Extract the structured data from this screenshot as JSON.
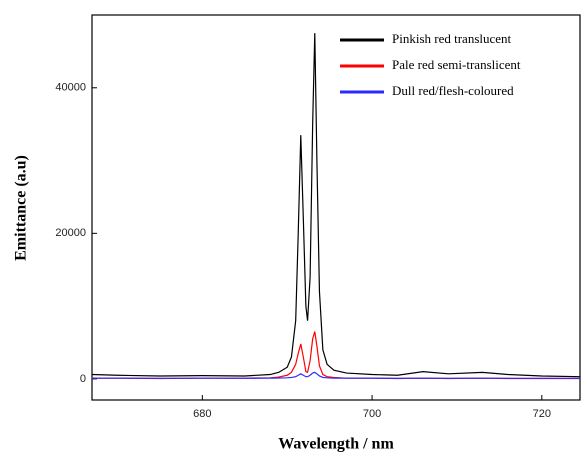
{
  "chart_data": {
    "type": "line",
    "xlabel": "Wavelength / nm",
    "ylabel": "Emittance (a.u)",
    "x": [
      667,
      670,
      675,
      680,
      685,
      688,
      689,
      690,
      690.5,
      691,
      691.3,
      691.6,
      691.9,
      692.2,
      692.4,
      692.7,
      693.0,
      693.25,
      693.5,
      693.8,
      694.2,
      694.7,
      695.5,
      697,
      700,
      703,
      706,
      709,
      713,
      716,
      720,
      724.5
    ],
    "series": [
      {
        "name": "Pinkish red translucent",
        "color": "#000000",
        "values": [
          600,
          500,
          400,
          450,
          400,
          600,
          900,
          1600,
          3000,
          8000,
          20000,
          33500,
          22000,
          10000,
          8000,
          14000,
          35000,
          47500,
          30000,
          12000,
          4000,
          2000,
          1200,
          800,
          600,
          500,
          1000,
          700,
          900,
          600,
          400,
          300
        ]
      },
      {
        "name": "Pale red semi-translicent",
        "color": "#ff0000",
        "values": [
          100,
          100,
          50,
          100,
          100,
          150,
          250,
          500,
          900,
          2000,
          3500,
          4800,
          3000,
          1000,
          900,
          2500,
          5500,
          6500,
          4500,
          1800,
          600,
          300,
          200,
          100,
          100,
          50,
          100,
          50,
          100,
          50,
          50,
          50
        ]
      },
      {
        "name": "Dull red/flesh-coloured",
        "color": "#2a2aff",
        "values": [
          100,
          100,
          80,
          100,
          80,
          100,
          120,
          150,
          200,
          300,
          500,
          700,
          500,
          300,
          300,
          500,
          800,
          900,
          700,
          400,
          200,
          150,
          100,
          100,
          100,
          80,
          100,
          80,
          100,
          80,
          80,
          80
        ]
      }
    ],
    "xlim": [
      667,
      724.5
    ],
    "xticks": [
      680,
      700,
      720
    ],
    "ylim": [
      -2900,
      50000
    ],
    "yticks": [
      0,
      20000,
      40000
    ],
    "legend": "upper right"
  }
}
